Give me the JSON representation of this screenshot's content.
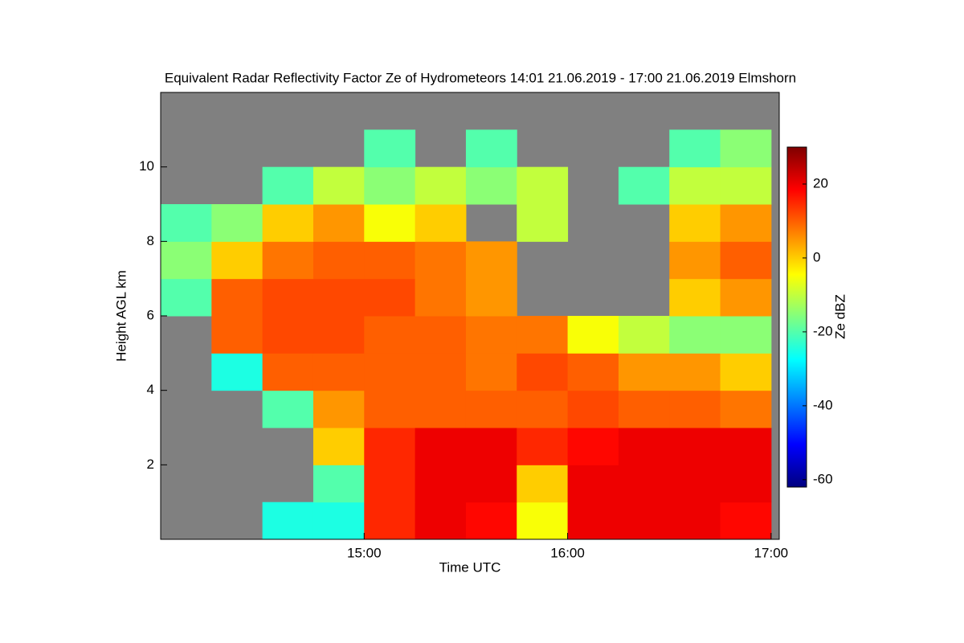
{
  "chart_data": {
    "type": "heatmap",
    "title": "Equivalent Radar Reflectivity Factor Ze of Hydrometeors   14:01 21.06.2019 - 17:00 21.06.2019 Elmshorn",
    "x_label": "Time UTC",
    "y_label": "Height AGL km",
    "colorbar_label": "Ze dBZ",
    "xlim": [
      14.0,
      17.04
    ],
    "ylim": [
      0,
      12
    ],
    "xticks": [
      {
        "value": 15,
        "label": "15:00"
      },
      {
        "value": 16,
        "label": "16:00"
      },
      {
        "value": 17,
        "label": "17:00"
      }
    ],
    "yticks": [
      2,
      4,
      6,
      8,
      10
    ],
    "clim": [
      -62,
      30
    ],
    "cticks": [
      -60,
      -40,
      -20,
      0,
      20
    ],
    "colormap": [
      "#00007f",
      "#0000ff",
      "#0080ff",
      "#00ffff",
      "#80ff80",
      "#ffff00",
      "#ff8000",
      "#ff0000",
      "#7f0000"
    ],
    "missing_color": "#808080",
    "x_edges": [
      14.0,
      14.25,
      14.5,
      14.75,
      15.0,
      15.25,
      15.5,
      15.75,
      16.0,
      16.25,
      16.5,
      16.75,
      17.0
    ],
    "y_edges": [
      0,
      1,
      2,
      3,
      4,
      5,
      6,
      7,
      8,
      9,
      10,
      11,
      12
    ],
    "z": [
      [
        null,
        null,
        -25,
        -25,
        15,
        20,
        18,
        -5,
        20,
        20,
        20,
        18
      ],
      [
        null,
        null,
        null,
        -20,
        15,
        20,
        20,
        0,
        20,
        20,
        20,
        20
      ],
      [
        null,
        null,
        null,
        0,
        15,
        20,
        20,
        15,
        18,
        20,
        20,
        20
      ],
      [
        null,
        null,
        -20,
        5,
        10,
        10,
        10,
        10,
        12,
        10,
        10,
        8
      ],
      [
        null,
        -25,
        10,
        10,
        10,
        10,
        8,
        12,
        10,
        5,
        5,
        0
      ],
      [
        null,
        10,
        12,
        12,
        10,
        10,
        8,
        8,
        -5,
        -10,
        -15,
        -15
      ],
      [
        -20,
        10,
        12,
        12,
        12,
        8,
        5,
        null,
        null,
        null,
        0,
        5
      ],
      [
        -15,
        0,
        8,
        10,
        10,
        8,
        5,
        null,
        null,
        null,
        5,
        10
      ],
      [
        -20,
        -15,
        0,
        5,
        -5,
        0,
        null,
        -10,
        null,
        null,
        0,
        5
      ],
      [
        null,
        null,
        -20,
        -10,
        -15,
        -10,
        -15,
        -10,
        null,
        -20,
        -10,
        -10
      ],
      [
        null,
        null,
        null,
        null,
        -20,
        null,
        -20,
        null,
        null,
        null,
        -20,
        -15
      ],
      [
        null,
        null,
        null,
        null,
        null,
        null,
        null,
        null,
        null,
        null,
        null,
        null
      ]
    ]
  }
}
